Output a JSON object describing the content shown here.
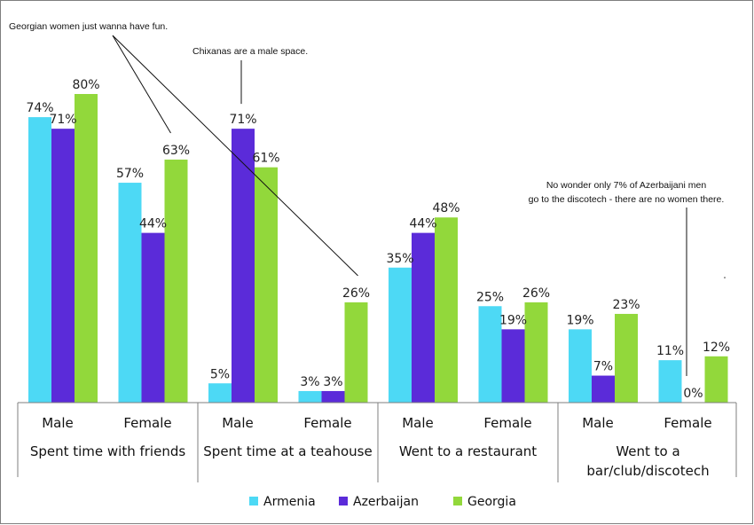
{
  "chart_data": {
    "type": "bar",
    "categories": [
      {
        "subgroup": "Male",
        "group": "Spent time with friends"
      },
      {
        "subgroup": "Female",
        "group": "Spent time with friends"
      },
      {
        "subgroup": "Male",
        "group": "Spent time at a teahouse"
      },
      {
        "subgroup": "Female",
        "group": "Spent time at a teahouse"
      },
      {
        "subgroup": "Male",
        "group": "Went to a restaurant"
      },
      {
        "subgroup": "Female",
        "group": "Went to a restaurant"
      },
      {
        "subgroup": "Male",
        "group": "Went to a bar/club/discotech"
      },
      {
        "subgroup": "Female",
        "group": "Went to a bar/club/discotech"
      }
    ],
    "groups": [
      {
        "lines": [
          "Spent time with friends"
        ]
      },
      {
        "lines": [
          "Spent time at a teahouse"
        ]
      },
      {
        "lines": [
          "Went to a restaurant"
        ]
      },
      {
        "lines": [
          "Went to a",
          "bar/club/discotech"
        ]
      }
    ],
    "series": [
      {
        "name": "Armenia",
        "color": "#4dd9f5",
        "values": [
          74,
          57,
          5,
          3,
          35,
          25,
          19,
          11
        ]
      },
      {
        "name": "Azerbaijan",
        "color": "#5b2bd9",
        "values": [
          71,
          44,
          71,
          3,
          44,
          19,
          7,
          0
        ]
      },
      {
        "name": "Georgia",
        "color": "#92d83b",
        "values": [
          80,
          63,
          61,
          26,
          48,
          26,
          23,
          12
        ]
      }
    ],
    "value_suffix": "%",
    "ylim": [
      0,
      80
    ],
    "grid": false,
    "legend": "bottom",
    "annotations": [
      {
        "text": "Georgian women just wanna have fun."
      },
      {
        "text": "Chixanas are a male space."
      },
      {
        "lines": [
          "No wonder only 7% of Azerbaijani men",
          "go to the discotech  - there are no women there."
        ]
      }
    ]
  }
}
